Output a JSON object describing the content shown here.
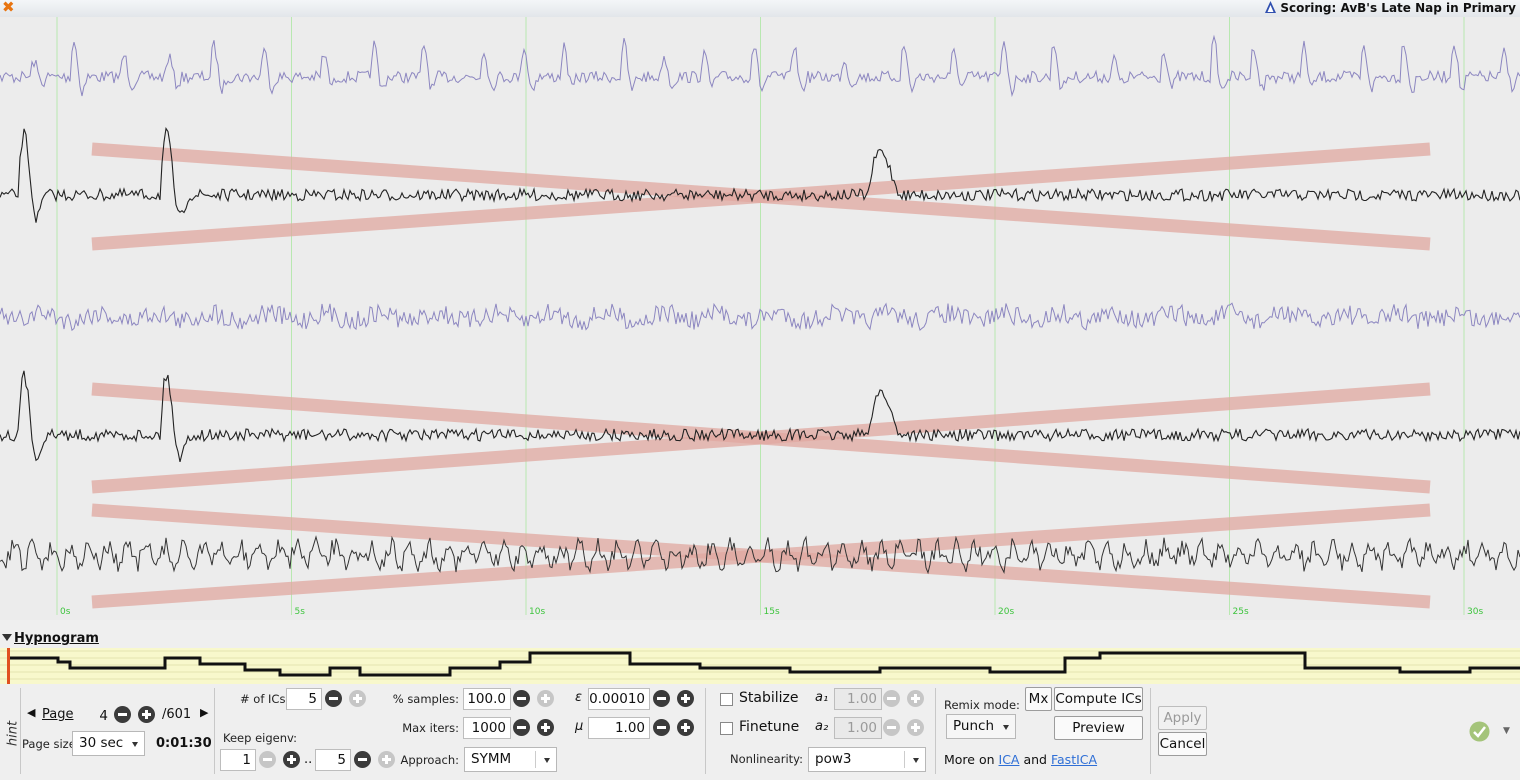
{
  "window": {
    "title": "Scoring: AvB's Late Nap in Primary"
  },
  "timeline": {
    "ticks": [
      "0s",
      "5s",
      "10s",
      "15s",
      "20s",
      "25s",
      "30s"
    ]
  },
  "hypnogram": {
    "title": "Hypnogram"
  },
  "hint": "hint",
  "paging": {
    "page_label": "Page",
    "page_value": "4",
    "page_total": "/601",
    "page_size_label": "Page size:",
    "page_size_value": "30 sec",
    "time": "0:01:30"
  },
  "ica": {
    "num_ics_label": "# of ICs:",
    "num_ics_value": "5",
    "keep_eigenv_label": "Keep eigenv:",
    "keep_from": "1",
    "keep_dots": "..",
    "keep_to": "5",
    "pct_samples_label": "% samples:",
    "pct_samples_value": "100.0",
    "max_iters_label": "Max iters:",
    "max_iters_value": "1000",
    "approach_label": "Approach:",
    "approach_value": "SYMM",
    "epsilon_label": "ε",
    "epsilon_value": "0.00010",
    "mu_label": "μ",
    "mu_value": "1.00",
    "stabilize_label": "Stabilize",
    "finetune_label": "Finetune",
    "a1_label": "a₁",
    "a1_value": "1.00",
    "a2_label": "a₂",
    "a2_value": "1.00",
    "nonlinearity_label": "Nonlinearity:",
    "nonlinearity_value": "pow3",
    "remix_label": "Remix mode:",
    "remix_value": "Punch",
    "mx_label": "Mx",
    "compute_label": "Compute ICs",
    "preview_label": "Preview",
    "more_on": "More on",
    "ica_link": "ICA",
    "and": "and",
    "fastica_link": "FastICA",
    "apply_label": "Apply",
    "cancel_label": "Cancel"
  },
  "colors": {
    "trace_blue": "#8c86c0",
    "trace_black": "#222222",
    "cross": "#e0a8a0",
    "grid": "#b8e8b0",
    "tick_text": "#3ec43e",
    "hyp_bg": "#f8f8cc",
    "cursor": "#e05020"
  }
}
